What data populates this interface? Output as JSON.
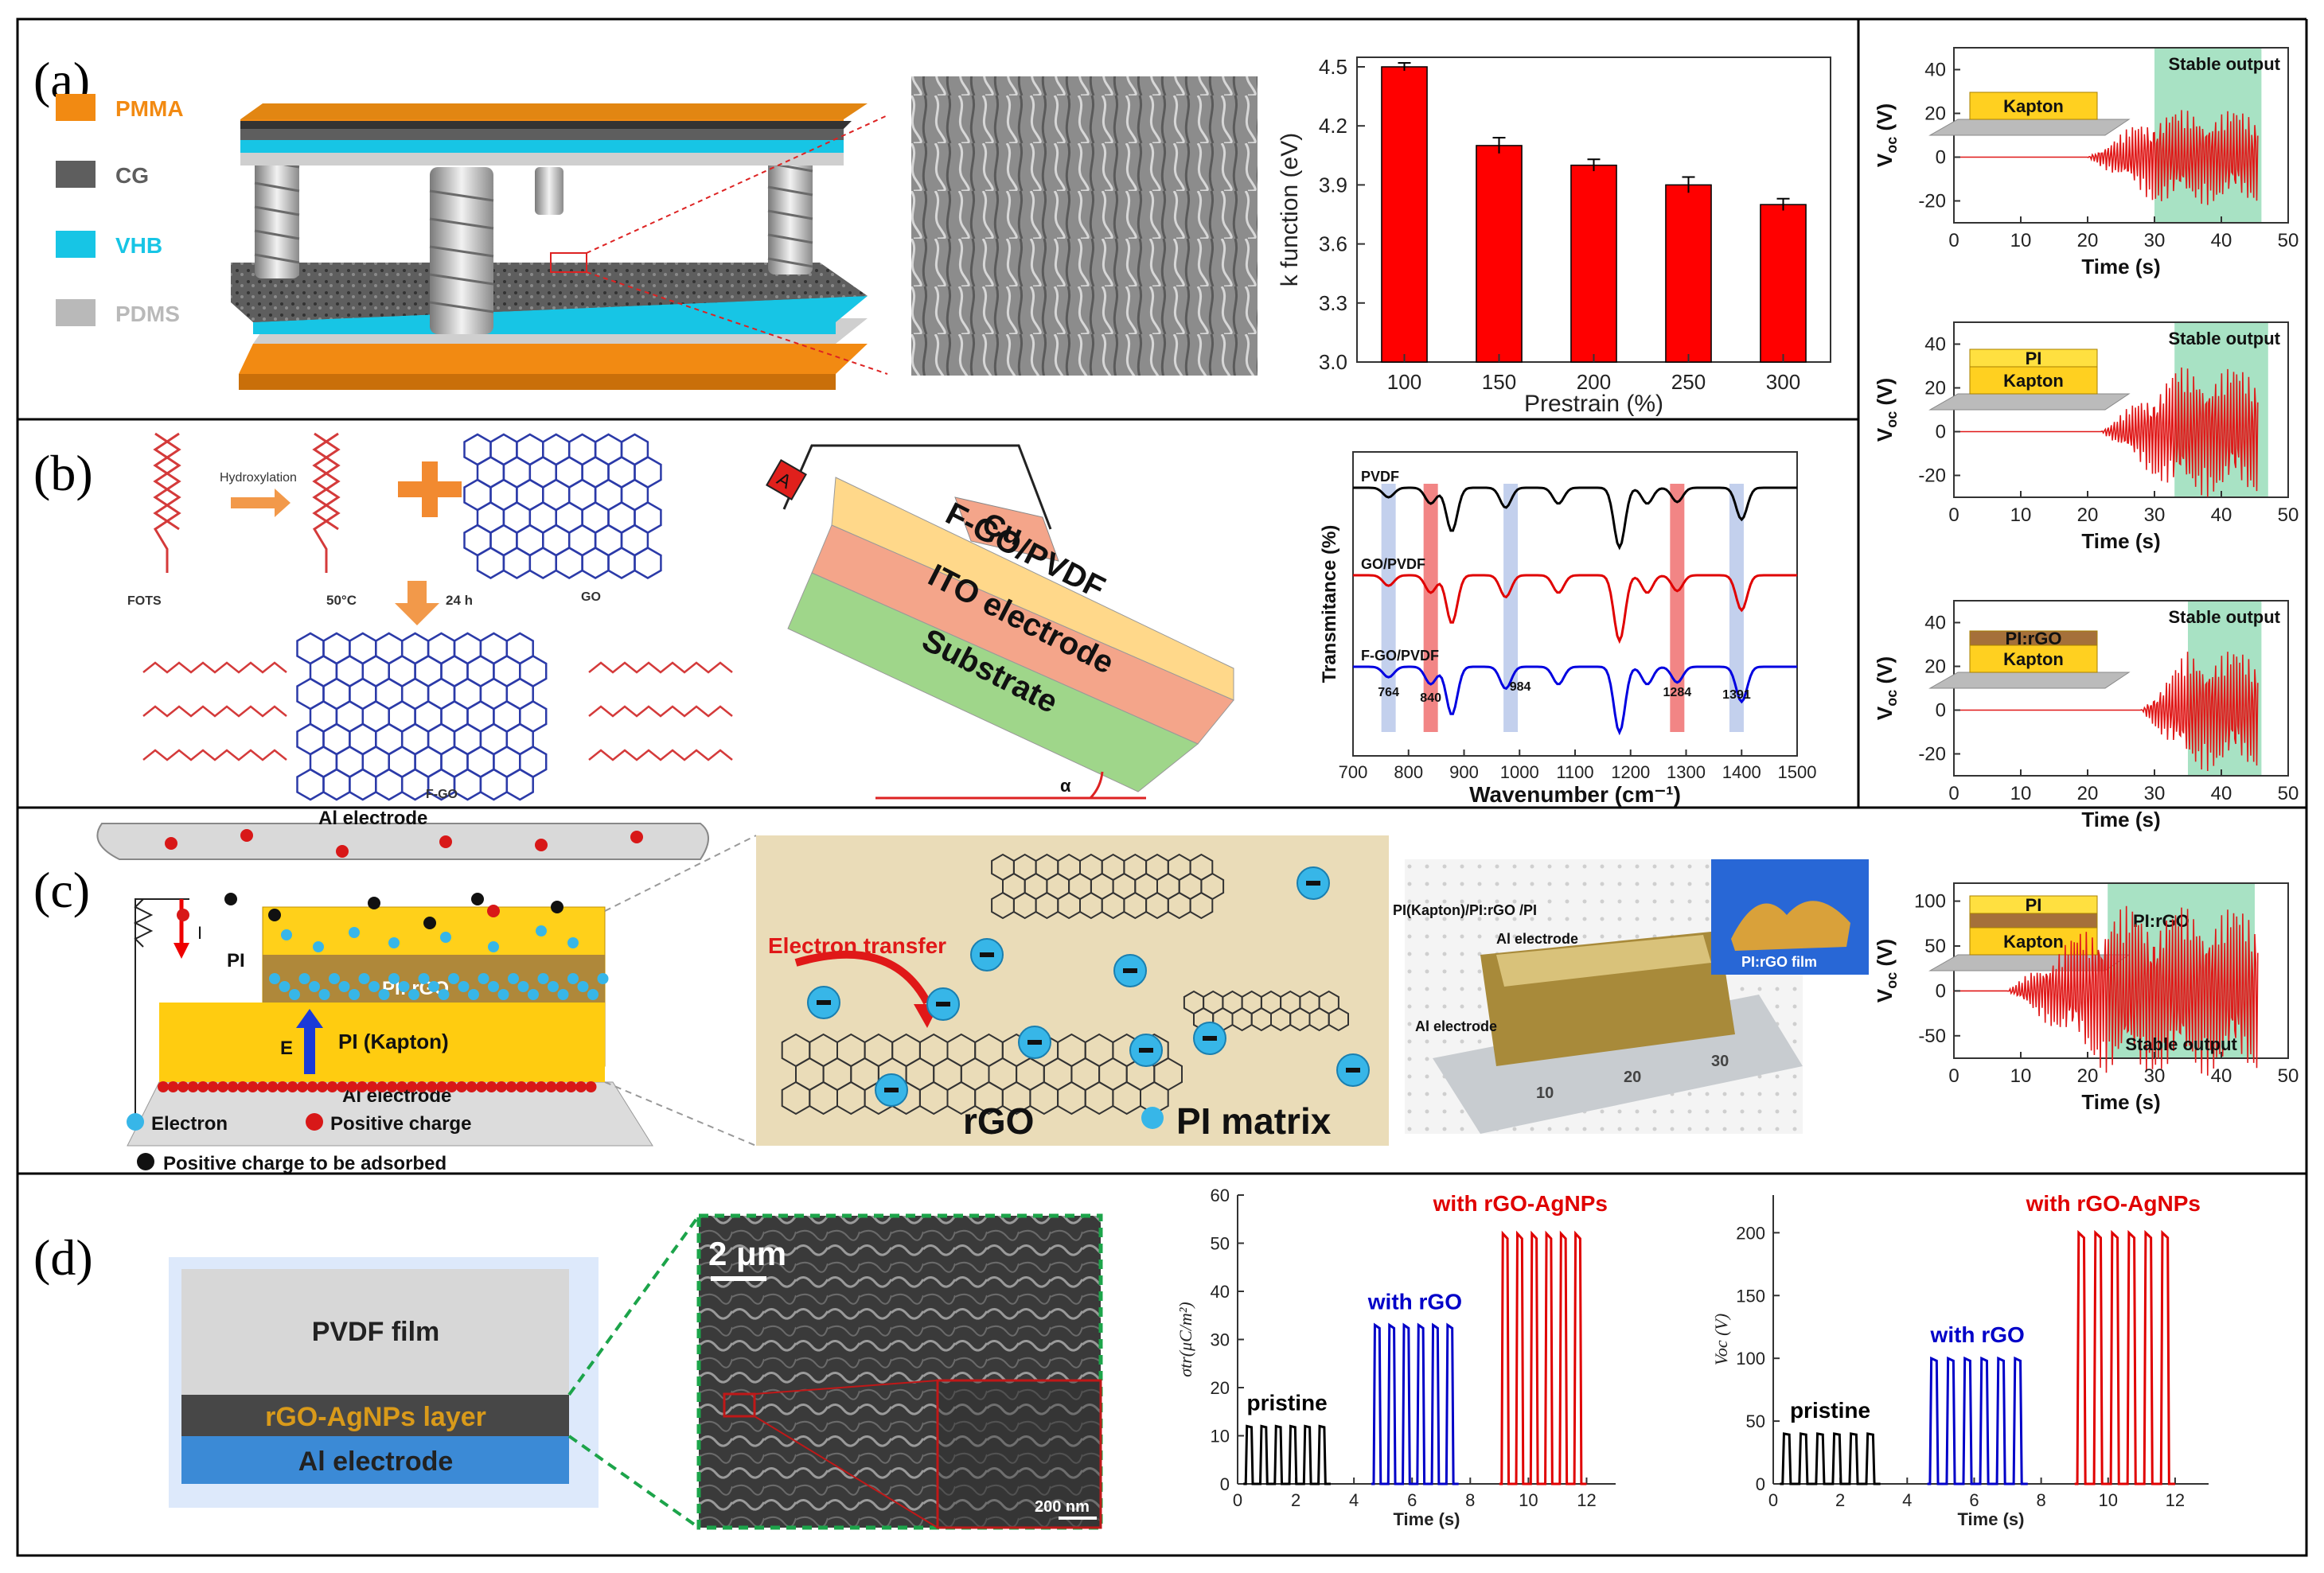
{
  "panels": {
    "a": {
      "letter": "(a)",
      "legend": [
        "PMMA",
        "CG",
        "VHB",
        "PDMS"
      ],
      "legend_colors": [
        "#f28a12",
        "#5e5e5e",
        "#17c5e5",
        "#b9b9b9"
      ],
      "chart": {
        "type": "bar",
        "categories": [
          "100",
          "150",
          "200",
          "250",
          "300"
        ],
        "values": [
          4.5,
          4.1,
          4.0,
          3.9,
          3.8
        ],
        "errors": [
          0.02,
          0.04,
          0.03,
          0.04,
          0.03
        ],
        "ylabel": "k function (eV)",
        "xlabel": "Prestrain (%)",
        "ylim": [
          3.0,
          4.5
        ],
        "yticks": [
          "3.0",
          "3.3",
          "3.6",
          "3.9",
          "4.2",
          "4.5"
        ],
        "bar_color": "#ff0000"
      }
    },
    "b": {
      "letter": "(b)",
      "chem": {
        "hydroxylation": "Hydroxylation",
        "fots": "FOTS",
        "go": "GO",
        "fgo": "F-GO",
        "temp": "50°C",
        "time": "24 h"
      },
      "device": {
        "ammeter": "A",
        "cu": "Cu",
        "layer1": "F-GO/PVDF",
        "layer2": "ITO electrode",
        "layer3": "Substrate",
        "angle": "α"
      },
      "ftir": {
        "ylabel": "Transmitance (%)",
        "xlabel": "Wavenumber (cm⁻¹)",
        "xticks": [
          "700",
          "800",
          "900",
          "1000",
          "1100",
          "1200",
          "1300",
          "1400",
          "1500"
        ],
        "series": [
          "PVDF",
          "GO/PVDF",
          "F-GO/PVDF"
        ],
        "series_colors": [
          "#000000",
          "#e00000",
          "#0000e0"
        ],
        "peaks": [
          "764",
          "840",
          "984",
          "1284",
          "1391"
        ]
      }
    },
    "c": {
      "letter": "(c)",
      "schematic": {
        "al_top": "Al electrode",
        "current": "I",
        "pi": "PI",
        "pirgo": "PI: rGO",
        "e_field": "E",
        "kapton": "PI (Kapton)",
        "al_bottom": "Al electrode",
        "legend_electron": "Electron",
        "legend_positive": "Positive charge",
        "legend_adsorbed": "Positive charge to be adsorbed"
      },
      "transfer": {
        "label": "Electron transfer",
        "rgo": "rGO",
        "matrix": "PI matrix"
      },
      "photo": {
        "stack": "PI(Kapton)/PI:rGO /PI",
        "al1": "Al electrode",
        "al2": "Al electrode",
        "film": "PI:rGO film",
        "ruler": [
          "10",
          "20",
          "30"
        ]
      }
    },
    "d": {
      "letter": "(d)",
      "layers": {
        "l1": "PVDF film",
        "l2": "rGO-AgNPs layer",
        "l3": "Al electrode"
      },
      "sem": {
        "scale1": "2 μm",
        "scale2": "200 nm"
      },
      "chart1": {
        "ylabel": "σtr(μC/m²)",
        "xlabel": "Time (s)",
        "yticks": [
          "0",
          "10",
          "20",
          "30",
          "40",
          "50",
          "60"
        ],
        "xticks": [
          "0",
          "2",
          "4",
          "6",
          "8",
          "10",
          "12"
        ],
        "ylim": [
          0,
          60
        ],
        "xlim": [
          0,
          13
        ],
        "series": [
          {
            "name": "pristine",
            "color": "#000000",
            "peak": 12,
            "start": 0.2,
            "count": 6
          },
          {
            "name": "with rGO",
            "color": "#0000c8",
            "peak": 33,
            "start": 4.6,
            "count": 6
          },
          {
            "name": "with rGO-AgNPs",
            "color": "#e00000",
            "peak": 52,
            "start": 9.0,
            "count": 6
          }
        ]
      },
      "chart2": {
        "ylabel": "Voc (V)",
        "xlabel": "Time (s)",
        "yticks": [
          "0",
          "50",
          "100",
          "150",
          "200"
        ],
        "xticks": [
          "0",
          "2",
          "4",
          "6",
          "8",
          "10",
          "12"
        ],
        "ylim": [
          0,
          230
        ],
        "xlim": [
          0,
          13
        ],
        "series": [
          {
            "name": "pristine",
            "color": "#000000",
            "peak": 40,
            "start": 0.2,
            "count": 6
          },
          {
            "name": "with rGO",
            "color": "#0000c8",
            "peak": 100,
            "start": 4.6,
            "count": 6
          },
          {
            "name": "with rGO-AgNPs",
            "color": "#e00000",
            "peak": 200,
            "start": 9.0,
            "count": 6
          }
        ]
      }
    },
    "right": {
      "ylabel_main": "V",
      "ylabel_sub": "oc",
      "ylabel_unit": " (V)",
      "xlabel": "Time (s)",
      "stable": "Stable output",
      "xticks": [
        "0",
        "10",
        "20",
        "30",
        "40",
        "50"
      ],
      "charts": [
        {
          "yticks": [
            "-20",
            "0",
            "20",
            "40"
          ],
          "ylim": [
            -30,
            50
          ],
          "layers": [
            "Kapton"
          ],
          "stable_range": [
            30,
            46
          ],
          "start": 20,
          "amp": 22
        },
        {
          "yticks": [
            "-20",
            "0",
            "20",
            "40"
          ],
          "ylim": [
            -30,
            50
          ],
          "layers": [
            "PI",
            "Kapton"
          ],
          "stable_range": [
            33,
            47
          ],
          "start": 22,
          "amp": 30
        },
        {
          "yticks": [
            "-20",
            "0",
            "20",
            "40"
          ],
          "ylim": [
            -30,
            50
          ],
          "layers": [
            "PI:rGO",
            "Kapton"
          ],
          "stable_range": [
            35,
            46
          ],
          "start": 28,
          "amp": 28
        },
        {
          "yticks": [
            "-50",
            "0",
            "50",
            "100"
          ],
          "ylim": [
            -75,
            120
          ],
          "layers": [
            "PI",
            "PI:rGO",
            "Kapton"
          ],
          "stable_range": [
            23,
            45
          ],
          "start": 8,
          "amp": 95
        }
      ]
    }
  }
}
